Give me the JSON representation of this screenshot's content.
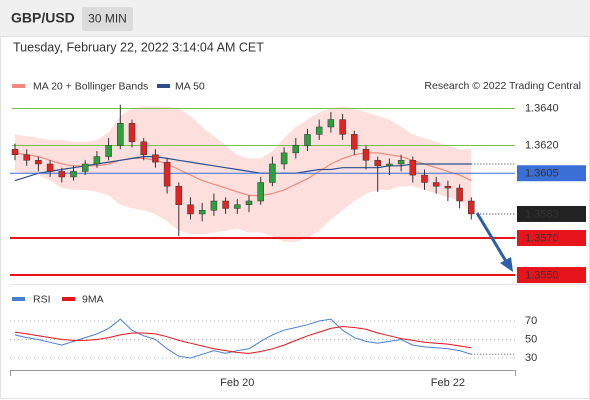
{
  "chart_data": {
    "type": "candlestick",
    "title": "GBP/USD",
    "interval": "30 MIN",
    "subtitle": "Tuesday, February 22, 2022 3:14:04 AM CET",
    "source": "Research © 2022 Trading Central",
    "categories": [
      null,
      null,
      null,
      null,
      null,
      null,
      null,
      null,
      null,
      null,
      null,
      null,
      null,
      null,
      null,
      null,
      null,
      null,
      null,
      "Feb 20",
      null,
      null,
      null,
      null,
      null,
      null,
      null,
      null,
      null,
      null,
      null,
      null,
      null,
      null,
      null,
      null,
      null,
      "Feb 22",
      null,
      null
    ],
    "open": [
      1.3618,
      1.3615,
      1.3612,
      1.361,
      1.3606,
      1.3603,
      1.3606,
      1.361,
      1.3614,
      1.362,
      1.3632,
      1.3622,
      1.3615,
      1.3611,
      1.3598,
      1.3588,
      1.3583,
      1.3585,
      1.359,
      1.3586,
      1.3588,
      1.359,
      1.36,
      1.361,
      1.3616,
      1.362,
      1.3626,
      1.363,
      1.3634,
      1.3626,
      1.3618,
      1.3612,
      1.3609,
      1.361,
      1.3612,
      1.3604,
      1.36,
      1.3598,
      1.3597,
      1.359
    ],
    "high": [
      1.3621,
      1.3618,
      1.3614,
      1.3612,
      1.3608,
      1.3609,
      1.3612,
      1.3617,
      1.3624,
      1.3642,
      1.3634,
      1.3624,
      1.3618,
      1.3613,
      1.36,
      1.3592,
      1.3589,
      1.3594,
      1.3592,
      1.3591,
      1.3593,
      1.3603,
      1.3614,
      1.3619,
      1.3624,
      1.3629,
      1.3634,
      1.3638,
      1.3637,
      1.3628,
      1.362,
      1.3614,
      1.3613,
      1.3615,
      1.3614,
      1.3607,
      1.3603,
      1.3601,
      1.3599,
      1.3592
    ],
    "low": [
      1.3612,
      1.3609,
      1.3606,
      1.3603,
      1.36,
      1.3601,
      1.3604,
      1.3608,
      1.3612,
      1.3618,
      1.3619,
      1.3612,
      1.3608,
      1.3594,
      1.3571,
      1.358,
      1.3579,
      1.3582,
      1.3583,
      1.3583,
      1.3584,
      1.3588,
      1.3598,
      1.3607,
      1.3613,
      1.3617,
      1.3623,
      1.3627,
      1.3623,
      1.3615,
      1.3607,
      1.3595,
      1.3604,
      1.3606,
      1.36,
      1.3596,
      1.3594,
      1.359,
      1.3586,
      1.358
    ],
    "close": [
      1.3615,
      1.3612,
      1.361,
      1.3606,
      1.3603,
      1.3606,
      1.361,
      1.3614,
      1.362,
      1.3632,
      1.3622,
      1.3615,
      1.3611,
      1.3598,
      1.3588,
      1.3583,
      1.3585,
      1.359,
      1.3586,
      1.3588,
      1.359,
      1.36,
      1.361,
      1.3616,
      1.362,
      1.3626,
      1.363,
      1.3634,
      1.3626,
      1.3618,
      1.3612,
      1.3609,
      1.361,
      1.3612,
      1.3604,
      1.36,
      1.3598,
      1.3597,
      1.359,
      1.3583
    ],
    "up_color": "#2e9e3e",
    "down_color": "#e02424",
    "overlays": [
      {
        "name": "MA 20 + Bollinger Bands",
        "color": "#f08a80",
        "band_color": "#fde0dd",
        "values": [
          1.3616,
          1.3615,
          1.3614,
          1.3612,
          1.361,
          1.3609,
          1.3609,
          1.3609,
          1.361,
          1.3612,
          1.3613,
          1.3613,
          1.3612,
          1.361,
          1.3607,
          1.3604,
          1.3601,
          1.3599,
          1.3597,
          1.3595,
          1.3593,
          1.3593,
          1.3594,
          1.3596,
          1.3599,
          1.3602,
          1.3606,
          1.361,
          1.3613,
          1.3615,
          1.3616,
          1.3616,
          1.3615,
          1.3614,
          1.3612,
          1.361,
          1.3608,
          1.3606,
          1.3604,
          1.3601
        ],
        "upper": [
          1.3626,
          1.3625,
          1.3624,
          1.3623,
          1.3623,
          1.3622,
          1.3622,
          1.3623,
          1.3627,
          1.3636,
          1.364,
          1.3641,
          1.3641,
          1.3641,
          1.364,
          1.3636,
          1.363,
          1.3625,
          1.362,
          1.3615,
          1.3613,
          1.3613,
          1.3617,
          1.3624,
          1.363,
          1.3634,
          1.3638,
          1.364,
          1.3641,
          1.364,
          1.3638,
          1.3636,
          1.3634,
          1.363,
          1.3626,
          1.3624,
          1.3622,
          1.362,
          1.3618,
          1.3618
        ],
        "lower": [
          1.3606,
          1.3605,
          1.3604,
          1.3601,
          1.3597,
          1.3596,
          1.3596,
          1.3595,
          1.3593,
          1.3588,
          1.3586,
          1.3585,
          1.3583,
          1.3579,
          1.3574,
          1.3572,
          1.3572,
          1.3573,
          1.3574,
          1.3575,
          1.3573,
          1.3573,
          1.3571,
          1.3568,
          1.3568,
          1.357,
          1.3574,
          1.358,
          1.3585,
          1.359,
          1.3594,
          1.3596,
          1.3596,
          1.3598,
          1.3598,
          1.3596,
          1.3594,
          1.3592,
          1.359,
          1.3584
        ]
      },
      {
        "name": "MA 50",
        "color": "#2b4f8e",
        "values": [
          1.3601,
          1.3603,
          1.3605,
          1.3606,
          1.3607,
          1.3608,
          1.3609,
          1.361,
          1.3611,
          1.3612,
          1.3613,
          1.3614,
          1.3614,
          1.3613,
          1.3612,
          1.3611,
          1.361,
          1.3609,
          1.3608,
          1.3607,
          1.3606,
          1.3605,
          1.3605,
          1.3605,
          1.3605,
          1.3606,
          1.3607,
          1.3607,
          1.3608,
          1.3608,
          1.3608,
          1.3608,
          1.3609,
          1.3609,
          1.361,
          1.361,
          1.361,
          1.361,
          1.361,
          1.361
        ]
      }
    ],
    "ylim": [
      1.3543,
      1.3647
    ],
    "levels": [
      {
        "value": 1.364,
        "label": "1.3640",
        "style": "resistance",
        "color": "#7cc04a"
      },
      {
        "value": 1.362,
        "label": "1.3620",
        "style": "resistance",
        "color": "#7cc04a"
      },
      {
        "value": 1.3605,
        "label": "1.3605",
        "style": "pivot",
        "color": "#3b6fd8"
      },
      {
        "value": 1.3583,
        "label": "1.3583",
        "style": "last",
        "color": "#222222"
      },
      {
        "value": 1.357,
        "label": "1.3570",
        "style": "support",
        "color": "#e8141b"
      },
      {
        "value": 1.355,
        "label": "1.3550",
        "style": "support",
        "color": "#e8141b"
      }
    ],
    "indicator": {
      "ylim": [
        15,
        85
      ],
      "yticks": [
        70,
        50,
        30
      ],
      "series": [
        {
          "name": "RSI",
          "color": "#4a7fd4",
          "values": [
            55,
            52,
            50,
            47,
            44,
            48,
            52,
            56,
            62,
            72,
            60,
            54,
            50,
            40,
            32,
            30,
            34,
            38,
            35,
            38,
            40,
            48,
            55,
            60,
            63,
            66,
            70,
            72,
            60,
            52,
            48,
            46,
            48,
            50,
            44,
            42,
            41,
            40,
            38,
            34
          ]
        },
        {
          "name": "9MA",
          "color": "#e8141b",
          "values": [
            58,
            56,
            54,
            52,
            50,
            49,
            49,
            50,
            52,
            55,
            57,
            57,
            56,
            53,
            49,
            46,
            43,
            40,
            38,
            36,
            35,
            37,
            40,
            44,
            49,
            54,
            58,
            62,
            64,
            63,
            61,
            57,
            54,
            51,
            49,
            47,
            46,
            45,
            43,
            41
          ]
        }
      ]
    }
  }
}
